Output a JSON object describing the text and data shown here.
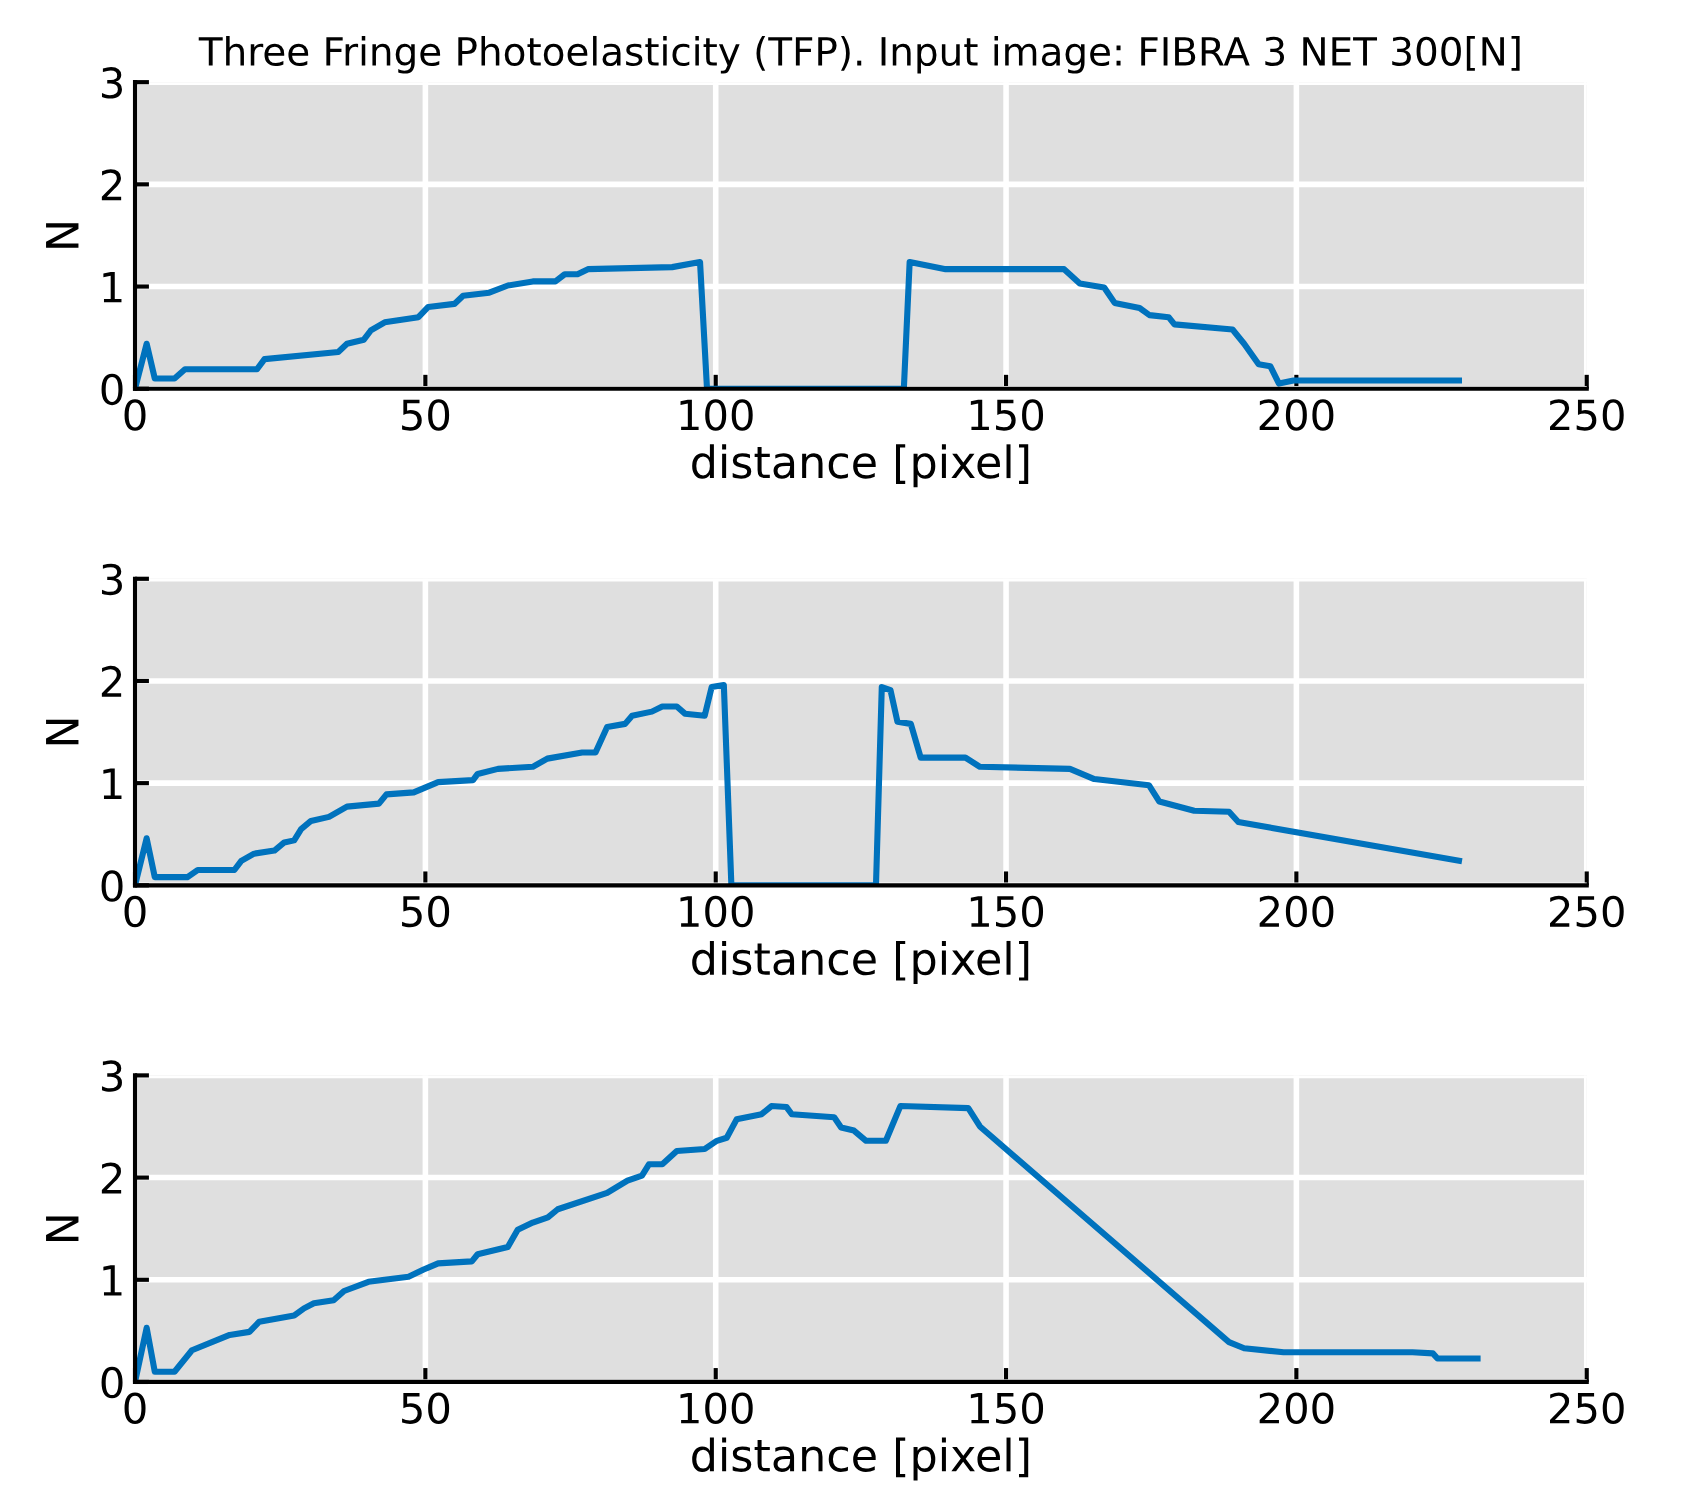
{
  "chart_data": [
    {
      "type": "line",
      "title": "Three Fringe Photoelasticity (TFP). Input image: FIBRA 3 NET 300[N]",
      "xlabel": "distance [pixel]",
      "ylabel": "N",
      "xlim": [
        0,
        250
      ],
      "ylim": [
        0,
        3
      ],
      "xticks": [
        0,
        50,
        100,
        150,
        200,
        250
      ],
      "yticks": [
        0,
        1,
        2,
        3
      ],
      "grid": true,
      "marker": "none",
      "line_style": "solid",
      "series": [
        {
          "color": "#0072bd",
          "x": [
            0,
            2,
            3.4,
            6.8,
            8.6,
            21,
            22.3,
            35,
            36.5,
            39.4,
            40.6,
            43,
            48.8,
            50.5,
            55,
            56.5,
            61,
            64.2,
            68.5,
            72.4,
            74,
            76.2,
            78,
            92.5,
            97.3,
            98.5,
            132.4,
            133.4,
            139.6,
            160,
            162.7,
            166.9,
            168.7,
            173,
            174.7,
            178,
            179,
            189,
            191,
            193.5,
            195.5,
            197,
            199.5,
            228
          ],
          "values": [
            0,
            0.44,
            0.1,
            0.1,
            0.19,
            0.19,
            0.29,
            0.36,
            0.44,
            0.48,
            0.57,
            0.65,
            0.7,
            0.8,
            0.83,
            0.91,
            0.94,
            1.01,
            1.05,
            1.05,
            1.12,
            1.12,
            1.17,
            1.19,
            1.24,
            0,
            0,
            1.24,
            1.17,
            1.17,
            1.03,
            0.99,
            0.84,
            0.79,
            0.72,
            0.7,
            0.63,
            0.58,
            0.44,
            0.24,
            0.22,
            0.05,
            0.08,
            0.08
          ]
        }
      ]
    },
    {
      "type": "line",
      "xlabel": "distance [pixel]",
      "ylabel": "N",
      "xlim": [
        0,
        250
      ],
      "ylim": [
        0,
        3
      ],
      "xticks": [
        0,
        50,
        100,
        150,
        200,
        250
      ],
      "yticks": [
        0,
        1,
        2,
        3
      ],
      "grid": true,
      "marker": "none",
      "line_style": "solid",
      "series": [
        {
          "color": "#0072bd",
          "x": [
            0,
            2,
            3.4,
            9,
            10.8,
            17.1,
            18.3,
            20.5,
            24,
            25.7,
            27.4,
            28.6,
            30.3,
            33.4,
            36.5,
            42,
            43.3,
            48,
            52.2,
            58.2,
            59,
            62.5,
            68.5,
            71,
            77,
            79.3,
            81.3,
            84.4,
            85.6,
            89,
            90.8,
            93.3,
            94.7,
            98.1,
            99.3,
            101.4,
            102.7,
            127.6,
            128.6,
            130.1,
            131.3,
            133.6,
            135.3,
            143,
            145.5,
            161,
            165.2,
            174.6,
            176.4,
            182.4,
            188.4,
            190,
            228
          ],
          "values": [
            0,
            0.46,
            0.08,
            0.08,
            0.15,
            0.15,
            0.24,
            0.31,
            0.34,
            0.42,
            0.44,
            0.55,
            0.63,
            0.67,
            0.77,
            0.8,
            0.89,
            0.91,
            1.01,
            1.03,
            1.09,
            1.14,
            1.16,
            1.24,
            1.3,
            1.3,
            1.55,
            1.58,
            1.66,
            1.7,
            1.75,
            1.75,
            1.68,
            1.66,
            1.94,
            1.96,
            0,
            0,
            1.94,
            1.91,
            1.6,
            1.58,
            1.25,
            1.25,
            1.16,
            1.14,
            1.04,
            0.98,
            0.82,
            0.73,
            0.72,
            0.62,
            0.24
          ]
        }
      ]
    },
    {
      "type": "line",
      "xlabel": "distance [pixel]",
      "ylabel": "N",
      "xlim": [
        0,
        250
      ],
      "ylim": [
        0,
        3
      ],
      "xticks": [
        0,
        50,
        100,
        150,
        200,
        250
      ],
      "yticks": [
        0,
        1,
        2,
        3
      ],
      "grid": true,
      "marker": "none",
      "line_style": "solid",
      "series": [
        {
          "color": "#0072bd",
          "x": [
            0,
            2,
            3.4,
            6.8,
            9.8,
            16.3,
            19.7,
            21.4,
            27.4,
            29.1,
            30.8,
            34.2,
            36,
            40.2,
            47.1,
            49.7,
            52.2,
            58,
            59,
            64.2,
            65.9,
            68.5,
            71.1,
            72.8,
            81.3,
            84.8,
            87.3,
            88.5,
            90.8,
            93.3,
            98.1,
            100.2,
            101.9,
            103.6,
            107.9,
            109.6,
            112.2,
            113.1,
            120.4,
            121.6,
            123.8,
            125.9,
            129.3,
            131.8,
            143.5,
            145.5,
            188.4,
            191,
            197.8,
            220,
            223.5,
            224.3,
            231.2
          ],
          "values": [
            0,
            0.53,
            0.1,
            0.1,
            0.31,
            0.46,
            0.49,
            0.59,
            0.65,
            0.72,
            0.77,
            0.8,
            0.89,
            0.98,
            1.03,
            1.1,
            1.16,
            1.18,
            1.25,
            1.32,
            1.49,
            1.56,
            1.61,
            1.69,
            1.85,
            1.97,
            2.02,
            2.13,
            2.13,
            2.26,
            2.28,
            2.36,
            2.39,
            2.57,
            2.62,
            2.7,
            2.69,
            2.62,
            2.59,
            2.49,
            2.46,
            2.36,
            2.36,
            2.7,
            2.68,
            2.5,
            0.39,
            0.33,
            0.29,
            0.29,
            0.28,
            0.23,
            0.23
          ]
        }
      ]
    }
  ]
}
